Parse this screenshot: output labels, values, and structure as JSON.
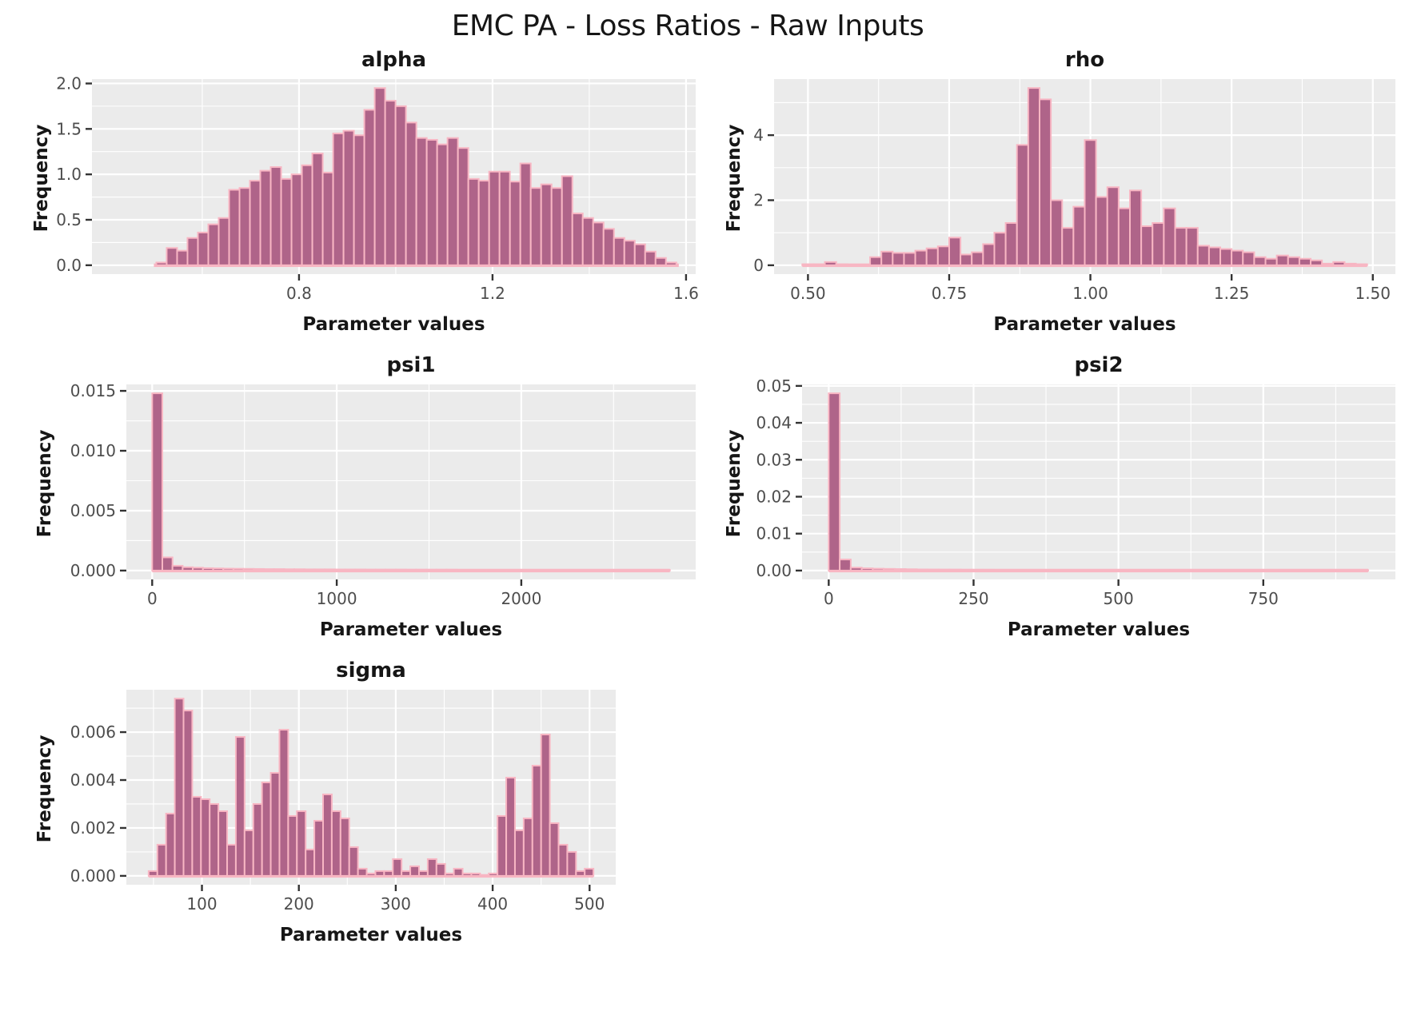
{
  "main_title": "EMC PA - Loss Ratios - Raw Inputs",
  "colors": {
    "panel_bg": "#ebebeb",
    "gridline": "#ffffff",
    "bar_fill": "#af6489",
    "bar_edge": "#f8b6c3",
    "tick_mark": "#333333",
    "tick_label": "#4d4d4d",
    "title_text": "#161616"
  },
  "chart_data": [
    {
      "id": "alpha",
      "type": "histogram",
      "title": "alpha",
      "xlabel": "Parameter values",
      "ylabel": "Frequency",
      "bin_start": 0.505,
      "bin_width": 0.0215,
      "heights": [
        0.03,
        0.19,
        0.16,
        0.3,
        0.36,
        0.45,
        0.52,
        0.83,
        0.85,
        0.93,
        1.04,
        1.08,
        0.95,
        1.0,
        1.1,
        1.23,
        1.02,
        1.45,
        1.48,
        1.43,
        1.71,
        1.95,
        1.81,
        1.75,
        1.57,
        1.4,
        1.38,
        1.33,
        1.4,
        1.29,
        0.95,
        0.93,
        1.03,
        1.03,
        0.92,
        1.12,
        0.85,
        0.89,
        0.85,
        0.98,
        0.57,
        0.52,
        0.47,
        0.4,
        0.3,
        0.27,
        0.23,
        0.15,
        0.08,
        0.03
      ],
      "xlim": [
        0.372,
        1.62
      ],
      "ylim": [
        -0.098,
        2.048
      ],
      "xticks": [
        0.8,
        1.2,
        1.6
      ],
      "xtick_labels": [
        "0.8",
        "1.2",
        "1.6"
      ],
      "yticks": [
        0,
        0.5,
        1.0,
        1.5,
        2.0
      ],
      "ytick_labels": [
        "0.0",
        "0.5",
        "1.0",
        "1.5",
        "2.0"
      ],
      "minor_x": [
        0.6,
        1.0,
        1.4
      ],
      "minor_y": [
        0.25,
        0.75,
        1.25,
        1.75
      ],
      "baseline": [
        0.5,
        1.585
      ]
    },
    {
      "id": "rho",
      "type": "histogram",
      "title": "rho",
      "xlabel": "Parameter values",
      "ylabel": "Frequency",
      "bin_start": 0.49,
      "bin_width": 0.02,
      "heights": [
        0.03,
        0.03,
        0.1,
        0.03,
        0.02,
        0.02,
        0.25,
        0.42,
        0.38,
        0.38,
        0.45,
        0.52,
        0.58,
        0.85,
        0.33,
        0.4,
        0.65,
        1.0,
        1.3,
        3.7,
        5.45,
        5.1,
        2.0,
        1.15,
        1.8,
        3.85,
        2.1,
        2.4,
        1.75,
        2.3,
        1.2,
        1.3,
        1.75,
        1.15,
        1.15,
        0.6,
        0.55,
        0.5,
        0.45,
        0.4,
        0.25,
        0.2,
        0.3,
        0.25,
        0.2,
        0.15,
        0.05,
        0.1,
        0.05,
        0.03
      ],
      "xlim": [
        0.44,
        1.54
      ],
      "ylim": [
        -0.273,
        5.723
      ],
      "xticks": [
        0.5,
        0.75,
        1.0,
        1.25,
        1.5
      ],
      "xtick_labels": [
        "0.50",
        "0.75",
        "1.00",
        "1.25",
        "1.50"
      ],
      "yticks": [
        0,
        2,
        4
      ],
      "ytick_labels": [
        "0",
        "2",
        "4"
      ],
      "minor_x": [
        0.625,
        0.875,
        1.125,
        1.375
      ],
      "minor_y": [
        1,
        3,
        5
      ],
      "baseline": [
        0.49,
        1.49
      ]
    },
    {
      "id": "psi1",
      "type": "histogram",
      "title": "psi1",
      "xlabel": "Parameter values",
      "ylabel": "Frequency",
      "bin_start": 0,
      "bin_width": 55,
      "heights": [
        0.0148,
        0.0011,
        0.0004,
        0.00028,
        0.00024,
        0.0002,
        0.00018,
        0.00016,
        0.00015,
        0.00014,
        0.00013,
        0.00012,
        0.00012,
        0.00011,
        0.00011,
        0.0001,
        0.0001,
        0.0001,
        9e-05,
        9e-05,
        9e-05,
        8e-05,
        8e-05,
        8e-05,
        8e-05,
        7e-05,
        7e-05,
        7e-05,
        7e-05,
        7e-05,
        6e-05,
        6e-05,
        6e-05,
        6e-05,
        6e-05,
        6e-05,
        6e-05,
        5e-05,
        5e-05,
        5e-05,
        5e-05,
        5e-05,
        5e-05,
        5e-05,
        5e-05,
        5e-05,
        5e-05,
        5e-05,
        5e-05,
        5e-05,
        5e-05
      ],
      "xlim": [
        -140,
        2945
      ],
      "ylim": [
        -0.00074,
        0.01554
      ],
      "xticks": [
        0,
        1000,
        2000
      ],
      "xtick_labels": [
        "0",
        "1000",
        "2000"
      ],
      "yticks": [
        0,
        0.005,
        0.01,
        0.015
      ],
      "ytick_labels": [
        "0.000",
        "0.005",
        "0.010",
        "0.015"
      ],
      "minor_x": [
        500,
        1500,
        2500
      ],
      "minor_y": [
        0.0025,
        0.0075,
        0.0125
      ],
      "baseline": [
        0,
        2805
      ]
    },
    {
      "id": "psi2",
      "type": "histogram",
      "title": "psi2",
      "xlabel": "Parameter values",
      "ylabel": "Frequency",
      "bin_start": 0,
      "bin_width": 19,
      "heights": [
        0.048,
        0.003,
        0.0008,
        0.0006,
        0.0005,
        0.00045,
        0.0004,
        0.00035,
        0.0003,
        0.00028,
        0.00026,
        0.00024,
        0.00022,
        0.0002,
        0.0002,
        0.00019,
        0.00018,
        0.00017,
        0.00016,
        0.00016,
        0.00015,
        0.00015,
        0.00014,
        0.00014,
        0.00013,
        0.00013,
        0.00012,
        0.00012,
        0.00012,
        0.00011,
        0.00011,
        0.00011,
        0.0001,
        0.0001,
        0.0001,
        0.0001,
        0.0001,
        0.0001,
        0.0001,
        0.0001,
        0.0001,
        0.0001,
        0.0001,
        0.0001,
        0.0001,
        0.0001,
        0.0001,
        0.0001,
        0.0001
      ],
      "xlim": [
        -46,
        978
      ],
      "ylim": [
        -0.0024,
        0.0504
      ],
      "xticks": [
        0,
        250,
        500,
        750
      ],
      "xtick_labels": [
        "0",
        "250",
        "500",
        "750"
      ],
      "yticks": [
        0,
        0.01,
        0.02,
        0.03,
        0.04,
        0.05
      ],
      "ytick_labels": [
        "0.00",
        "0.01",
        "0.02",
        "0.03",
        "0.04",
        "0.05"
      ],
      "minor_x": [
        125,
        375,
        625,
        875
      ],
      "minor_y": [
        0.005,
        0.015,
        0.025,
        0.035,
        0.045
      ],
      "baseline": [
        0,
        931
      ]
    },
    {
      "id": "sigma",
      "type": "histogram",
      "title": "sigma",
      "xlabel": "Parameter values",
      "ylabel": "Frequency",
      "bin_start": 45,
      "bin_width": 9,
      "heights": [
        0.0002,
        0.0013,
        0.0026,
        0.0074,
        0.0069,
        0.0033,
        0.0032,
        0.003,
        0.0027,
        0.0013,
        0.0058,
        0.0019,
        0.003,
        0.0039,
        0.0043,
        0.0061,
        0.0025,
        0.0027,
        0.0011,
        0.0023,
        0.0034,
        0.0027,
        0.0024,
        0.0012,
        0.0003,
        0.0001,
        0.0002,
        0.0002,
        0.0007,
        0.0002,
        0.0004,
        0.0002,
        0.0007,
        0.0005,
        0.0001,
        0.0003,
        0.0001,
        0.0001,
        0.0,
        0.0001,
        0.0025,
        0.0041,
        0.0019,
        0.0024,
        0.0046,
        0.0059,
        0.0022,
        0.0013,
        0.001,
        0.0002,
        0.0003
      ],
      "xlim": [
        22,
        527
      ],
      "ylim": [
        -0.00037,
        0.00777
      ],
      "xticks": [
        100,
        200,
        300,
        400,
        500
      ],
      "xtick_labels": [
        "100",
        "200",
        "300",
        "400",
        "500"
      ],
      "yticks": [
        0,
        0.002,
        0.004,
        0.006
      ],
      "ytick_labels": [
        "0.000",
        "0.002",
        "0.004",
        "0.006"
      ],
      "minor_x": [
        50,
        150,
        250,
        350,
        450
      ],
      "minor_y": [
        0.001,
        0.003,
        0.005,
        0.007
      ],
      "baseline": [
        45,
        504
      ]
    }
  ]
}
